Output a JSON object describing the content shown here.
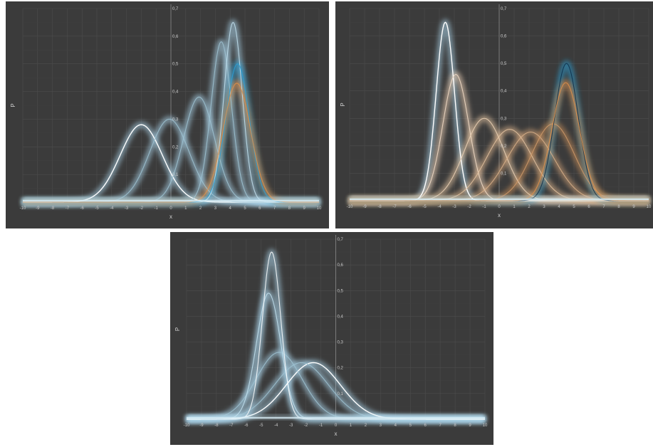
{
  "chart_data": [
    {
      "type": "line",
      "title": "",
      "xlabel": "x",
      "ylabel": "P",
      "xlim": [
        -10,
        10
      ],
      "ylim": [
        0,
        0.7
      ],
      "x_ticks": [
        -10,
        -9,
        -8,
        -7,
        -6,
        -5,
        -4,
        -3,
        -2,
        -1,
        0,
        1,
        2,
        3,
        4,
        5,
        6,
        7,
        8,
        9,
        10
      ],
      "y_ticks": [
        "0,1",
        "0,2",
        "0,3",
        "0,4",
        "0,5",
        "0,6",
        "0,7"
      ],
      "grid": true,
      "series": [
        {
          "mean": -2.0,
          "peak": 0.28,
          "color": "#ffffff",
          "glow": "#a9d3ea",
          "highlight": true
        },
        {
          "mean": -0.1,
          "peak": 0.3,
          "color": "#9fc3d2",
          "glow": "#a9d3ea"
        },
        {
          "mean": 1.9,
          "peak": 0.38,
          "color": "#9fc3d2",
          "glow": "#a9d3ea"
        },
        {
          "mean": 3.4,
          "peak": 0.58,
          "color": "#9fc3d2",
          "glow": "#a9d3ea"
        },
        {
          "mean": 4.2,
          "peak": 0.65,
          "color": "#c3e2f0",
          "glow": "#a9d3ea"
        },
        {
          "mean": 4.5,
          "peak": 0.5,
          "color": "#2a9fd6",
          "glow": "#2a9fd6"
        },
        {
          "mean": 4.45,
          "peak": 0.43,
          "color": "#e0904a",
          "glow": "#e0904a"
        }
      ]
    },
    {
      "type": "line",
      "title": "",
      "xlabel": "x",
      "ylabel": "P",
      "xlim": [
        -10,
        10
      ],
      "ylim": [
        0,
        0.7
      ],
      "x_ticks": [
        -10,
        -9,
        -8,
        -7,
        -6,
        -5,
        -4,
        -3,
        -2,
        -1,
        0,
        1,
        2,
        3,
        4,
        5,
        6,
        7,
        8,
        9,
        10
      ],
      "y_ticks": [
        "0,1",
        "0,2",
        "0,3",
        "0,4",
        "0,5",
        "0,6",
        "0,7"
      ],
      "grid": true,
      "series": [
        {
          "mean": -3.6,
          "peak": 0.65,
          "color": "#ffffff",
          "glow": "#a9d3ea",
          "highlight": true
        },
        {
          "mean": -2.9,
          "peak": 0.46,
          "color": "#f3ddc8",
          "glow": "#f0d4b8"
        },
        {
          "mean": -1.0,
          "peak": 0.3,
          "color": "#ecd2b6",
          "glow": "#e8c6a2"
        },
        {
          "mean": 0.7,
          "peak": 0.26,
          "color": "#e2c2a0",
          "glow": "#dcb48c"
        },
        {
          "mean": 2.1,
          "peak": 0.25,
          "color": "#d8b08a",
          "glow": "#d2a278"
        },
        {
          "mean": 3.6,
          "peak": 0.28,
          "color": "#cf9a6a",
          "glow": "#c98e5a"
        },
        {
          "mean": 4.5,
          "peak": 0.5,
          "color": "#0d2f4a",
          "glow": "#2a9fd6"
        },
        {
          "mean": 4.45,
          "peak": 0.43,
          "color": "#e0904a",
          "glow": "#e0904a"
        }
      ]
    },
    {
      "type": "line",
      "title": "",
      "xlabel": "x",
      "ylabel": "P",
      "xlim": [
        -10,
        10
      ],
      "ylim": [
        0,
        0.7
      ],
      "x_ticks": [
        -10,
        -9,
        -8,
        -7,
        -6,
        -5,
        -4,
        -3,
        -2,
        -1,
        0,
        1,
        2,
        3,
        4,
        5,
        6,
        7,
        8,
        9,
        10
      ],
      "y_ticks": [
        "0,1",
        "0,2",
        "0,3",
        "0,4",
        "0,5",
        "0,6",
        "0,7"
      ],
      "grid": true,
      "series": [
        {
          "mean": -1.5,
          "peak": 0.22,
          "color": "#ffffff",
          "glow": "#a9d3ea",
          "highlight": true
        },
        {
          "mean": -2.3,
          "peak": 0.22,
          "color": "#9fc3d2",
          "glow": "#a9d3ea"
        },
        {
          "mean": -3.8,
          "peak": 0.26,
          "color": "#9fc3d2",
          "glow": "#a9d3ea"
        },
        {
          "mean": -4.5,
          "peak": 0.49,
          "color": "#c3e2f0",
          "glow": "#a9d3ea"
        },
        {
          "mean": -4.3,
          "peak": 0.65,
          "color": "#ffffff",
          "glow": "#a9d3ea"
        }
      ]
    }
  ]
}
